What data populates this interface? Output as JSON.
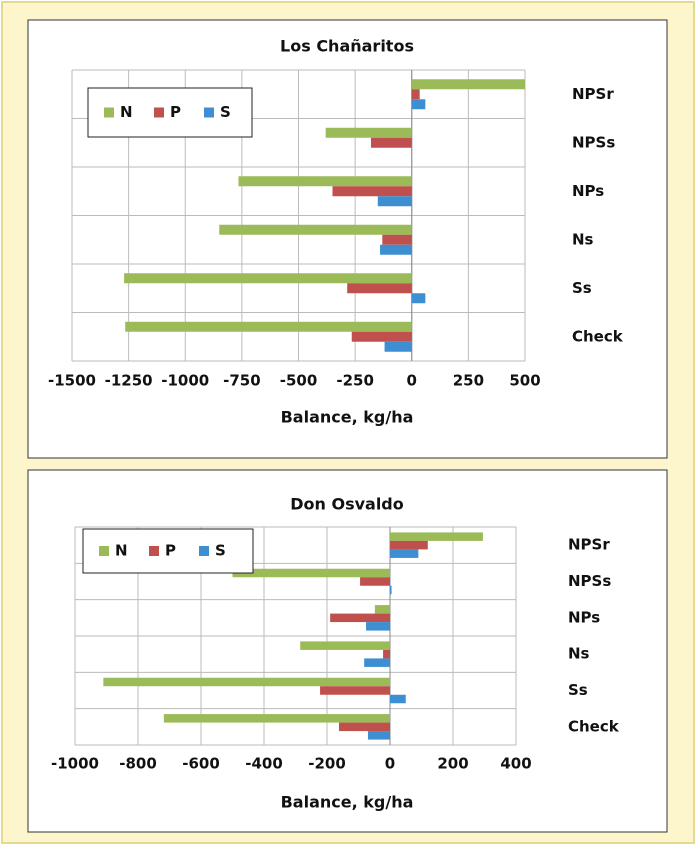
{
  "chart_data": [
    {
      "type": "barh",
      "title": "Los Chañaritos",
      "xlabel": "Balance, kg/ha",
      "categories": [
        "NPSr",
        "NPSs",
        "NPs",
        "Ns",
        "Ss",
        "Check"
      ],
      "series": [
        {
          "name": "N",
          "color": "#9bbb59",
          "values": [
            500,
            -380,
            -765,
            -850,
            -1270,
            -1265
          ]
        },
        {
          "name": "P",
          "color": "#c0504d",
          "values": [
            35,
            -180,
            -350,
            -130,
            -285,
            -265
          ]
        },
        {
          "name": "S",
          "color": "#3d8fd1",
          "values": [
            60,
            0,
            -150,
            -140,
            60,
            -120
          ]
        }
      ],
      "xlim": [
        -1500,
        500
      ],
      "xticks": [
        -1500,
        -1250,
        -1000,
        -750,
        -500,
        -250,
        0,
        250,
        500
      ],
      "grid": true,
      "legend": "upper left"
    },
    {
      "type": "barh",
      "title": "Don Osvaldo",
      "xlabel": "Balance, kg/ha",
      "categories": [
        "NPSr",
        "NPSs",
        "NPs",
        "Ns",
        "Ss",
        "Check"
      ],
      "series": [
        {
          "name": "N",
          "color": "#9bbb59",
          "values": [
            295,
            -500,
            -48,
            -285,
            -910,
            -718
          ]
        },
        {
          "name": "P",
          "color": "#c0504d",
          "values": [
            120,
            -95,
            -190,
            -22,
            -222,
            -162
          ]
        },
        {
          "name": "S",
          "color": "#3d8fd1",
          "values": [
            90,
            5,
            -76,
            -82,
            50,
            -70
          ]
        }
      ],
      "xlim": [
        -1000,
        400
      ],
      "xticks": [
        -1000,
        -800,
        -600,
        -400,
        -200,
        0,
        200,
        400
      ],
      "grid": true,
      "legend": "upper left"
    }
  ]
}
